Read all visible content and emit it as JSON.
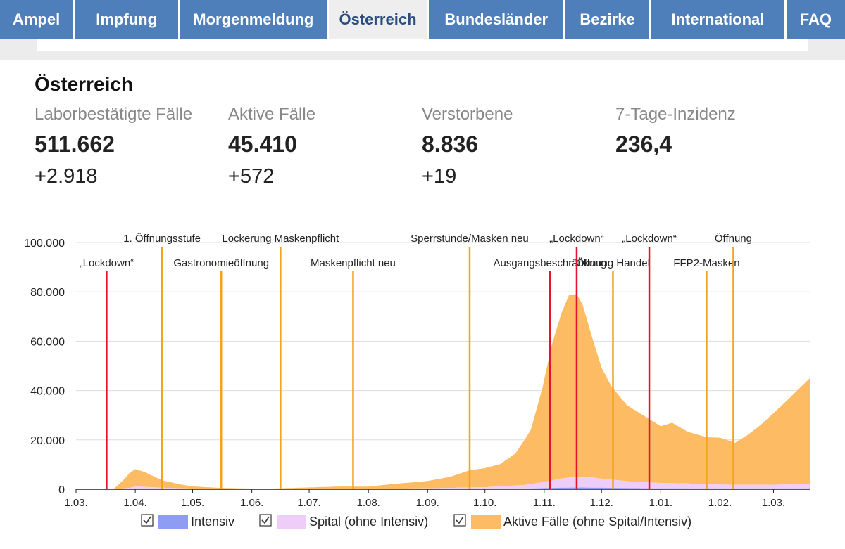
{
  "nav": {
    "tabs": [
      {
        "label": "Ampel",
        "active": false
      },
      {
        "label": "Impfung",
        "active": false
      },
      {
        "label": "Morgenmeldung",
        "active": false
      },
      {
        "label": "Österreich",
        "active": true
      },
      {
        "label": "Bundesländer",
        "active": false
      },
      {
        "label": "Bezirke",
        "active": false
      },
      {
        "label": "International",
        "active": false
      },
      {
        "label": "FAQ",
        "active": false
      }
    ]
  },
  "colors": {
    "nav_bg": "#4f7fba",
    "nav_active_bg": "#eeeeee",
    "nav_active_text": "#2b4e7e",
    "series_active": "#fdbb63",
    "series_spital": "#eecdf8",
    "series_intensiv": "#8f9cf4",
    "marker_lockdown": "#e5132b",
    "marker_other": "#f4a31c"
  },
  "summary": {
    "title": "Österreich",
    "stats": [
      {
        "label": "Laborbestätigte Fälle",
        "value": "511.662",
        "change": "+2.918"
      },
      {
        "label": "Aktive Fälle",
        "value": "45.410",
        "change": "+572"
      },
      {
        "label": "Verstorbene",
        "value": "8.836",
        "change": "+19"
      },
      {
        "label": "7-Tage-Inzidenz",
        "value": "236,4",
        "change": ""
      }
    ]
  },
  "chart_data": {
    "type": "area",
    "stacked": true,
    "ylim": [
      0,
      100000
    ],
    "yticks": [
      0,
      20000,
      40000,
      60000,
      80000,
      100000
    ],
    "ytick_labels": [
      "0",
      "20.000",
      "40.000",
      "60.000",
      "80.000",
      "100.000"
    ],
    "x_start_day": 0,
    "x_end_day": 384,
    "xticks": [
      {
        "day": 0,
        "label": "1.03."
      },
      {
        "day": 31,
        "label": "1.04."
      },
      {
        "day": 61,
        "label": "1.05."
      },
      {
        "day": 92,
        "label": "1.06."
      },
      {
        "day": 122,
        "label": "1.07."
      },
      {
        "day": 153,
        "label": "1.08."
      },
      {
        "day": 184,
        "label": "1.09."
      },
      {
        "day": 214,
        "label": "1.10."
      },
      {
        "day": 245,
        "label": "1.11."
      },
      {
        "day": 275,
        "label": "1.12."
      },
      {
        "day": 306,
        "label": "1.01."
      },
      {
        "day": 337,
        "label": "1.02."
      },
      {
        "day": 365,
        "label": "1.03."
      }
    ],
    "series": [
      {
        "name": "Intensiv",
        "points": [
          [
            0,
            0
          ],
          [
            20,
            0
          ],
          [
            31,
            250
          ],
          [
            45,
            120
          ],
          [
            61,
            40
          ],
          [
            122,
            10
          ],
          [
            184,
            50
          ],
          [
            214,
            150
          ],
          [
            235,
            250
          ],
          [
            245,
            450
          ],
          [
            255,
            650
          ],
          [
            265,
            700
          ],
          [
            275,
            620
          ],
          [
            290,
            450
          ],
          [
            306,
            350
          ],
          [
            337,
            300
          ],
          [
            355,
            300
          ],
          [
            365,
            300
          ],
          [
            384,
            330
          ]
        ]
      },
      {
        "name": "Spital (ohne Intensiv)",
        "points": [
          [
            0,
            0
          ],
          [
            20,
            0
          ],
          [
            28,
            400
          ],
          [
            31,
            900
          ],
          [
            45,
            500
          ],
          [
            61,
            200
          ],
          [
            92,
            50
          ],
          [
            122,
            30
          ],
          [
            153,
            150
          ],
          [
            184,
            300
          ],
          [
            214,
            700
          ],
          [
            235,
            1500
          ],
          [
            245,
            2500
          ],
          [
            255,
            3800
          ],
          [
            262,
            4400
          ],
          [
            268,
            4300
          ],
          [
            275,
            3700
          ],
          [
            290,
            2700
          ],
          [
            306,
            2200
          ],
          [
            320,
            2000
          ],
          [
            337,
            1600
          ],
          [
            350,
            1500
          ],
          [
            365,
            1550
          ],
          [
            384,
            1700
          ]
        ]
      },
      {
        "name": "Aktive Fälle (ohne Spital/Intensiv)",
        "points": [
          [
            0,
            0
          ],
          [
            12,
            50
          ],
          [
            20,
            300
          ],
          [
            25,
            3500
          ],
          [
            28,
            6000
          ],
          [
            31,
            7000
          ],
          [
            36,
            6000
          ],
          [
            45,
            3000
          ],
          [
            55,
            1500
          ],
          [
            61,
            900
          ],
          [
            75,
            400
          ],
          [
            92,
            200
          ],
          [
            100,
            150
          ],
          [
            122,
            700
          ],
          [
            138,
            1000
          ],
          [
            153,
            900
          ],
          [
            165,
            1800
          ],
          [
            184,
            3000
          ],
          [
            196,
            4500
          ],
          [
            206,
            7000
          ],
          [
            214,
            7700
          ],
          [
            222,
            9000
          ],
          [
            230,
            13000
          ],
          [
            238,
            22000
          ],
          [
            244,
            38000
          ],
          [
            249,
            55000
          ],
          [
            254,
            67000
          ],
          [
            258,
            74000
          ],
          [
            262,
            74000
          ],
          [
            265,
            70000
          ],
          [
            270,
            57000
          ],
          [
            275,
            45000
          ],
          [
            280,
            38000
          ],
          [
            288,
            31000
          ],
          [
            297,
            27000
          ],
          [
            306,
            23000
          ],
          [
            312,
            24500
          ],
          [
            320,
            21000
          ],
          [
            330,
            19000
          ],
          [
            337,
            19000
          ],
          [
            345,
            17000
          ],
          [
            352,
            20500
          ],
          [
            358,
            24000
          ],
          [
            365,
            29000
          ],
          [
            372,
            34000
          ],
          [
            380,
            40000
          ],
          [
            384,
            43000
          ]
        ]
      }
    ],
    "events": [
      {
        "label": "„Lockdown“",
        "day": 16,
        "type": "lockdown",
        "row": 2
      },
      {
        "label": "1. Öffnungsstufe",
        "day": 45,
        "type": "other",
        "row": 1
      },
      {
        "label": "Gastronomieöffnung",
        "day": 76,
        "type": "other",
        "row": 2
      },
      {
        "label": "Lockerung Maskenpflicht",
        "day": 107,
        "type": "other",
        "row": 1
      },
      {
        "label": "Maskenpflicht neu",
        "day": 145,
        "type": "other",
        "row": 2
      },
      {
        "label": "Sperrstunde/Masken neu",
        "day": 206,
        "type": "other",
        "row": 1
      },
      {
        "label": "Ausgangsbeschränkung",
        "day": 248,
        "type": "lockdown",
        "row": 2
      },
      {
        "label": "„Lockdown“",
        "day": 262,
        "type": "lockdown",
        "row": 1
      },
      {
        "label": "Öffnung Handel",
        "day": 281,
        "type": "other",
        "row": 2
      },
      {
        "label": "„Lockdown“",
        "day": 300,
        "type": "lockdown",
        "row": 1
      },
      {
        "label": "FFP2-Masken",
        "day": 330,
        "type": "other",
        "row": 2
      },
      {
        "label": "Öffnung",
        "day": 344,
        "type": "other",
        "row": 1
      }
    ],
    "legend": [
      {
        "name": "Intensiv",
        "checked": true
      },
      {
        "name": "Spital (ohne Intensiv)",
        "checked": true
      },
      {
        "name": "Aktive Fälle (ohne Spital/Intensiv)",
        "checked": true
      }
    ]
  }
}
